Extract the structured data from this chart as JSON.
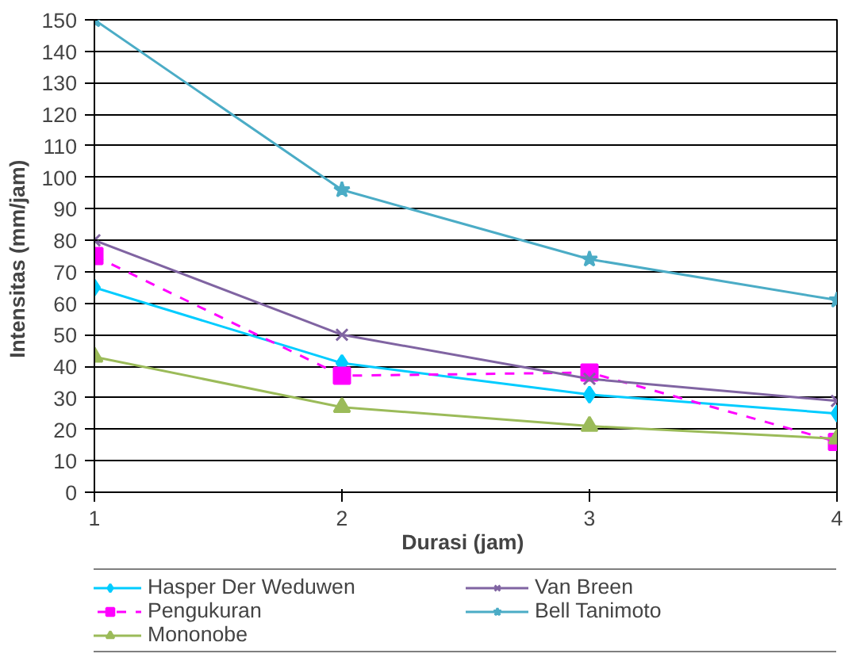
{
  "chart_data": {
    "type": "line",
    "xlabel": "Durasi  (jam)",
    "ylabel": "Intensitas  (mm/jam)",
    "x": [
      1,
      2,
      3,
      4
    ],
    "xlim": [
      1,
      4
    ],
    "xticks": [
      1,
      2,
      3,
      4
    ],
    "ylim": [
      0,
      150
    ],
    "yticks": [
      0,
      10,
      20,
      30,
      40,
      50,
      60,
      70,
      80,
      90,
      100,
      110,
      120,
      130,
      140,
      150
    ],
    "grid": "y",
    "legend": "bottom",
    "series": [
      {
        "name": "Hasper Der Weduwen",
        "color": "#00ccff",
        "marker": "diamond",
        "line_style": "solid",
        "values": [
          65,
          41,
          31,
          25
        ]
      },
      {
        "name": "Pengukuran",
        "color": "#ff00ff",
        "marker": "square",
        "line_style": "dashed",
        "values": [
          75,
          37,
          38,
          16
        ]
      },
      {
        "name": "Mononobe",
        "color": "#9bbb59",
        "marker": "triangle",
        "line_style": "solid",
        "values": [
          43,
          27,
          21,
          17
        ]
      },
      {
        "name": "Van Breen",
        "color": "#8064a2",
        "marker": "cross",
        "line_style": "solid",
        "values": [
          80,
          50,
          36,
          29
        ]
      },
      {
        "name": "Bell Tanimoto",
        "color": "#4bacc6",
        "marker": "star",
        "line_style": "solid",
        "values": [
          150,
          96,
          74,
          61
        ]
      }
    ]
  }
}
